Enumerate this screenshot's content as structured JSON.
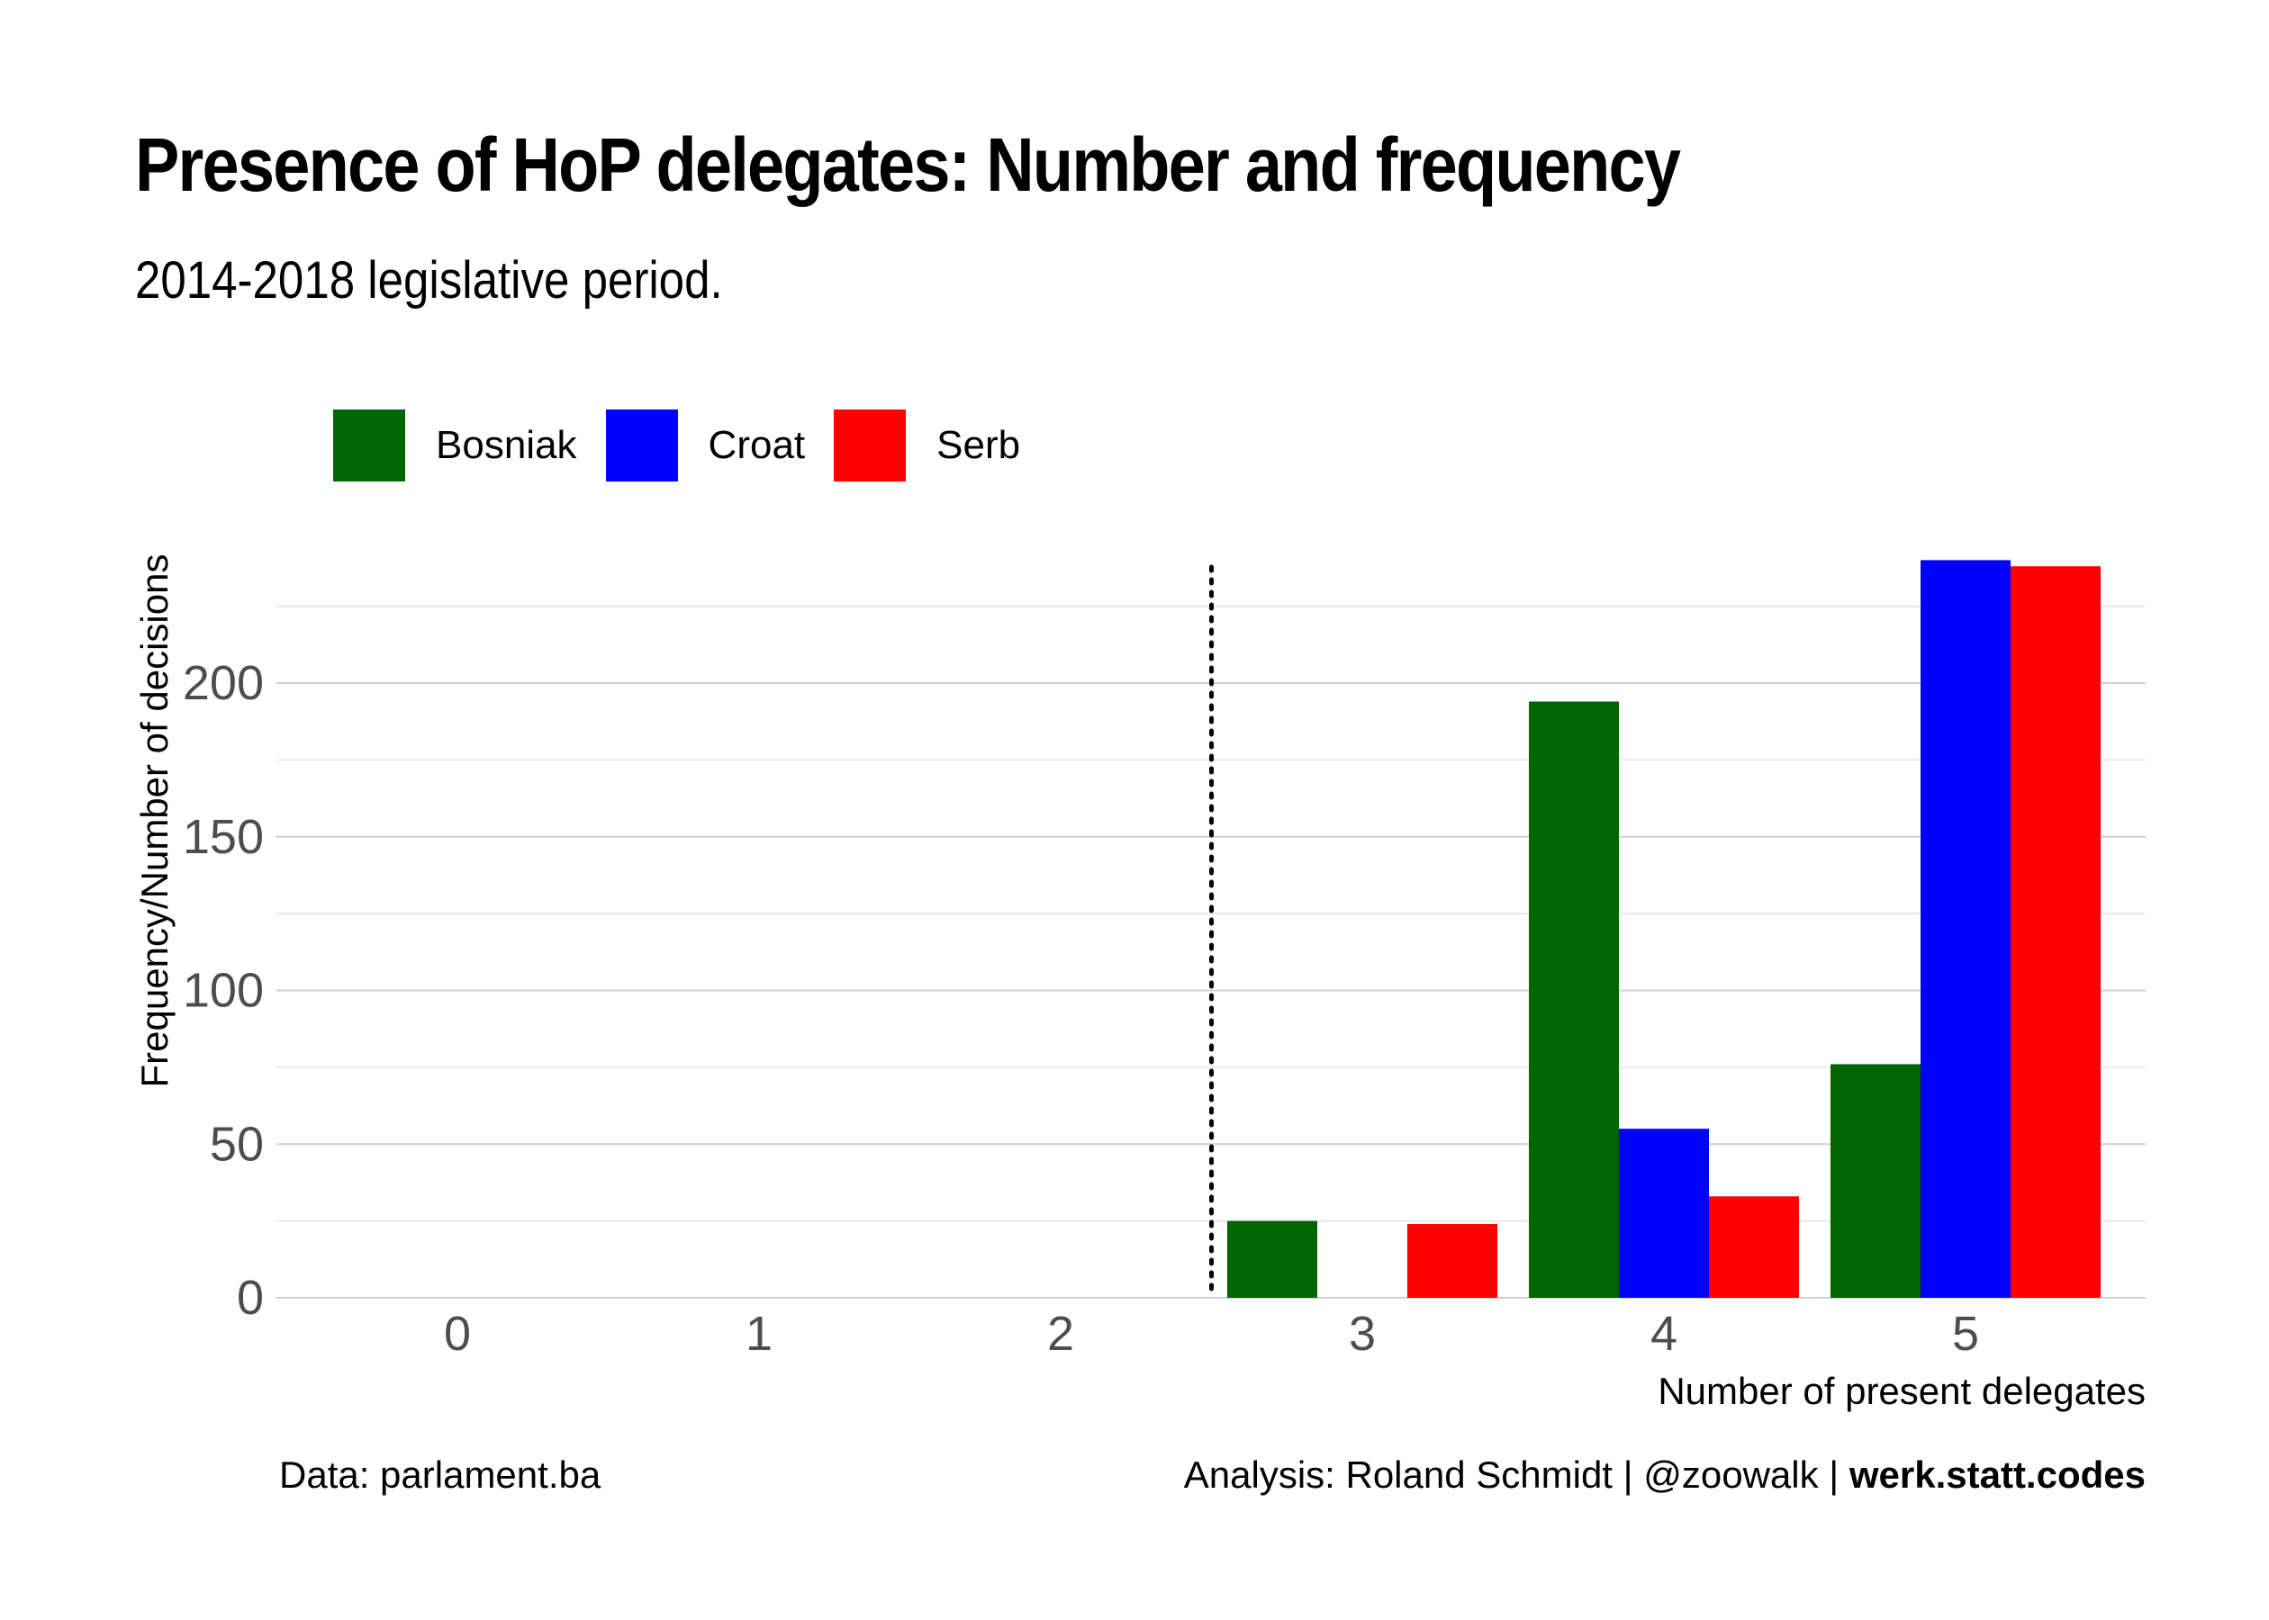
{
  "title": "Presence of HoP delegates: Number and frequency",
  "subtitle": "2014-2018 legislative period.",
  "caption": {
    "left": "Data: parlament.ba",
    "right_plain": "Analysis: Roland Schmidt | @zoowalk | ",
    "right_bold": "werk.statt.codes"
  },
  "colors": {
    "Bosniak": "#006400",
    "Croat": "#0000ff",
    "Serb": "#ff0000",
    "grid": "#d0d0d0",
    "reference_line": "#000000"
  },
  "legend": [
    {
      "label": "Bosniak",
      "color": "#006400"
    },
    {
      "label": "Croat",
      "color": "#0000ff"
    },
    {
      "label": "Serb",
      "color": "#ff0000"
    }
  ],
  "chart_data": {
    "type": "bar",
    "title": "Presence of HoP delegates: Number and frequency",
    "subtitle": "2014-2018 legislative period.",
    "xlabel": "Number of present delegates",
    "ylabel": "Frequency/Number of decisions",
    "categories": [
      "0",
      "1",
      "2",
      "3",
      "4",
      "5"
    ],
    "series": [
      {
        "name": "Bosniak",
        "values": [
          0,
          0,
          0,
          25,
          194,
          76
        ]
      },
      {
        "name": "Croat",
        "values": [
          0,
          0,
          0,
          0,
          55,
          240
        ]
      },
      {
        "name": "Serb",
        "values": [
          0,
          0,
          0,
          24,
          33,
          238
        ]
      }
    ],
    "yticks": [
      0,
      50,
      100,
      150,
      200
    ],
    "ylim": [
      0,
      240
    ],
    "reference_line": {
      "x": 2.5,
      "style": "dotted"
    },
    "grid": true,
    "legend_position": "top-left"
  }
}
